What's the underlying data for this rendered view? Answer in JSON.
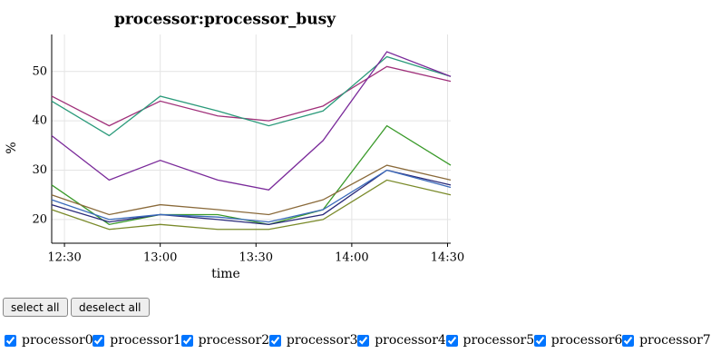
{
  "chart_data": {
    "type": "line",
    "title": "processor:processor_busy",
    "xlabel": "time",
    "ylabel": "%",
    "x": [
      746,
      764,
      780,
      798,
      814,
      831,
      851,
      871
    ],
    "xlim": [
      746,
      871
    ],
    "xticks": [
      {
        "value": 750,
        "label": "12:30"
      },
      {
        "value": 780,
        "label": "13:00"
      },
      {
        "value": 810,
        "label": "13:30"
      },
      {
        "value": 840,
        "label": "14:00"
      },
      {
        "value": 870,
        "label": "14:30"
      }
    ],
    "ylim": [
      15.2,
      57.5
    ],
    "yticks": [
      20,
      30,
      40,
      50
    ],
    "grid": true,
    "series": [
      {
        "name": "processor0",
        "color": "#a0307a",
        "values": [
          45,
          39,
          44,
          41,
          40,
          43,
          51,
          48
        ]
      },
      {
        "name": "processor1",
        "color": "#2a9a7a",
        "values": [
          44,
          37,
          45,
          42,
          39,
          42,
          53,
          49
        ]
      },
      {
        "name": "processor2",
        "color": "#7a2a9a",
        "values": [
          37,
          28,
          32,
          28,
          26,
          36,
          54,
          49
        ]
      },
      {
        "name": "processor3",
        "color": "#3a9a2a",
        "values": [
          27,
          19,
          21,
          21,
          19,
          22,
          39,
          31
        ]
      },
      {
        "name": "processor4",
        "color": "#8a6a3a",
        "values": [
          25,
          21,
          23,
          22,
          21,
          24,
          31,
          28
        ]
      },
      {
        "name": "processor5",
        "color": "#2a2a7a",
        "values": [
          23,
          19.5,
          21,
          20,
          19,
          21,
          30,
          27
        ]
      },
      {
        "name": "processor6",
        "color": "#3a6aba",
        "values": [
          24,
          20,
          21,
          20.5,
          19.5,
          22,
          30,
          26.5
        ]
      },
      {
        "name": "processor7",
        "color": "#7a8a2a",
        "values": [
          22,
          18,
          19,
          18,
          18,
          20,
          28,
          25
        ]
      }
    ]
  },
  "controls": {
    "select_all": "select all",
    "deselect_all": "deselect all"
  }
}
